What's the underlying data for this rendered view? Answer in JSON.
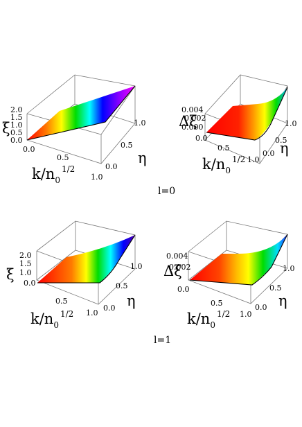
{
  "figure": {
    "rows": [
      {
        "caption": "l=0"
      },
      {
        "caption": "l=1"
      }
    ],
    "panels": [
      {
        "zlabel": "ξ",
        "ztick_labels": [
          "2.0",
          "1.5",
          "1.0",
          "0.5",
          "0.0"
        ],
        "xtick_labels": [
          "0.0",
          "0.5",
          "1.0"
        ],
        "ytick_labels": [
          "1.0",
          "0.5",
          "0.0"
        ],
        "xlabel_main": "k/n",
        "xlabel_sub": "0",
        "xlabel_sup": "1/2",
        "ylabel": "η"
      },
      {
        "zlabel": "Δξ",
        "ztick_labels": [
          "0.004",
          "0.002",
          "0.000"
        ],
        "xtick_labels": [
          "0.0",
          "0.5",
          "1.0"
        ],
        "ytick_labels": [
          "1.0",
          "0.5",
          "0.0"
        ],
        "xlabel_main": "k/n",
        "xlabel_sub": "0",
        "xlabel_sup": "1/2",
        "ylabel": "η"
      },
      {
        "zlabel": "ξ",
        "ztick_labels": [
          "2.0",
          "1.5",
          "1.0"
        ],
        "xtick_labels": [
          "0.0",
          "0.5",
          "1.0"
        ],
        "ytick_labels": [
          "1.0",
          "0.5",
          "0.0"
        ],
        "xlabel_main": "k/n",
        "xlabel_sub": "0",
        "xlabel_sup": "1/2",
        "ylabel": "η"
      },
      {
        "zlabel": "Δξ",
        "ztick_labels": [
          "0.004",
          "0.002"
        ],
        "xtick_labels": [
          "0.0",
          "0.5",
          "1.0"
        ],
        "ytick_labels": [
          "1.0",
          "0.5",
          "0.0"
        ],
        "xlabel_main": "k/n",
        "xlabel_sub": "0",
        "xlabel_sup": "1/2",
        "ylabel": "η"
      }
    ]
  },
  "colors": {
    "gradient": [
      "#ff0000",
      "#ff8800",
      "#ffff00",
      "#00dd00",
      "#00ffff",
      "#0000ff",
      "#8800ff",
      "#ff00ff"
    ],
    "box_edge": "#777777"
  }
}
